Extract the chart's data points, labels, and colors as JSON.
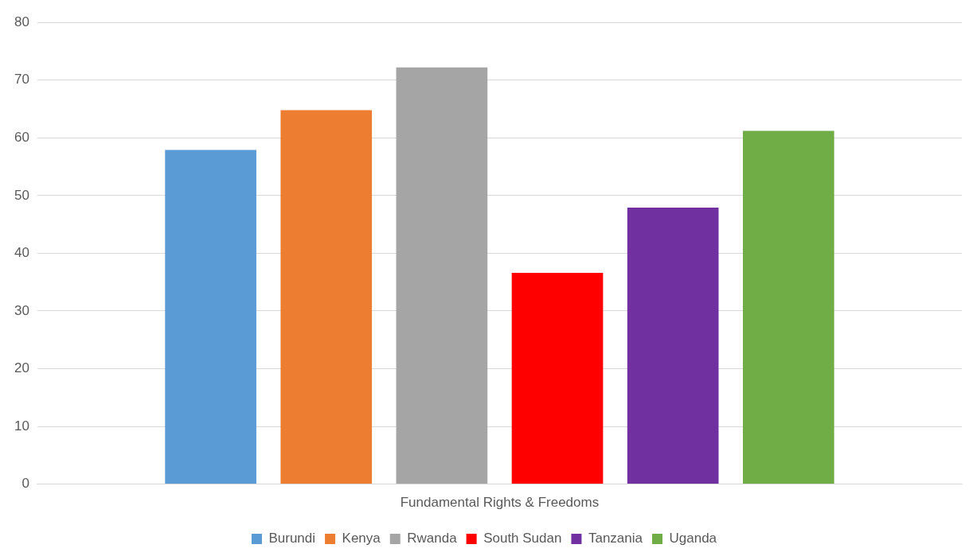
{
  "chart_data": {
    "type": "bar",
    "categories": [
      "Fundamental Rights & Freedoms"
    ],
    "series": [
      {
        "name": "Burundi",
        "color": "#5b9bd5",
        "values": [
          57.9
        ]
      },
      {
        "name": "Kenya",
        "color": "#ed7d31",
        "values": [
          64.8
        ]
      },
      {
        "name": "Rwanda",
        "color": "#a5a5a5",
        "values": [
          72.2
        ]
      },
      {
        "name": "South Sudan",
        "color": "#ff0000",
        "values": [
          36.6
        ]
      },
      {
        "name": "Tanzania",
        "color": "#7030a0",
        "values": [
          47.9
        ]
      },
      {
        "name": "Uganda",
        "color": "#70ad47",
        "values": [
          61.2
        ]
      }
    ],
    "ylim": [
      0,
      80
    ],
    "yticks": [
      0,
      10,
      20,
      30,
      40,
      50,
      60,
      70,
      80
    ],
    "grid": "y",
    "legend": "bottom"
  }
}
